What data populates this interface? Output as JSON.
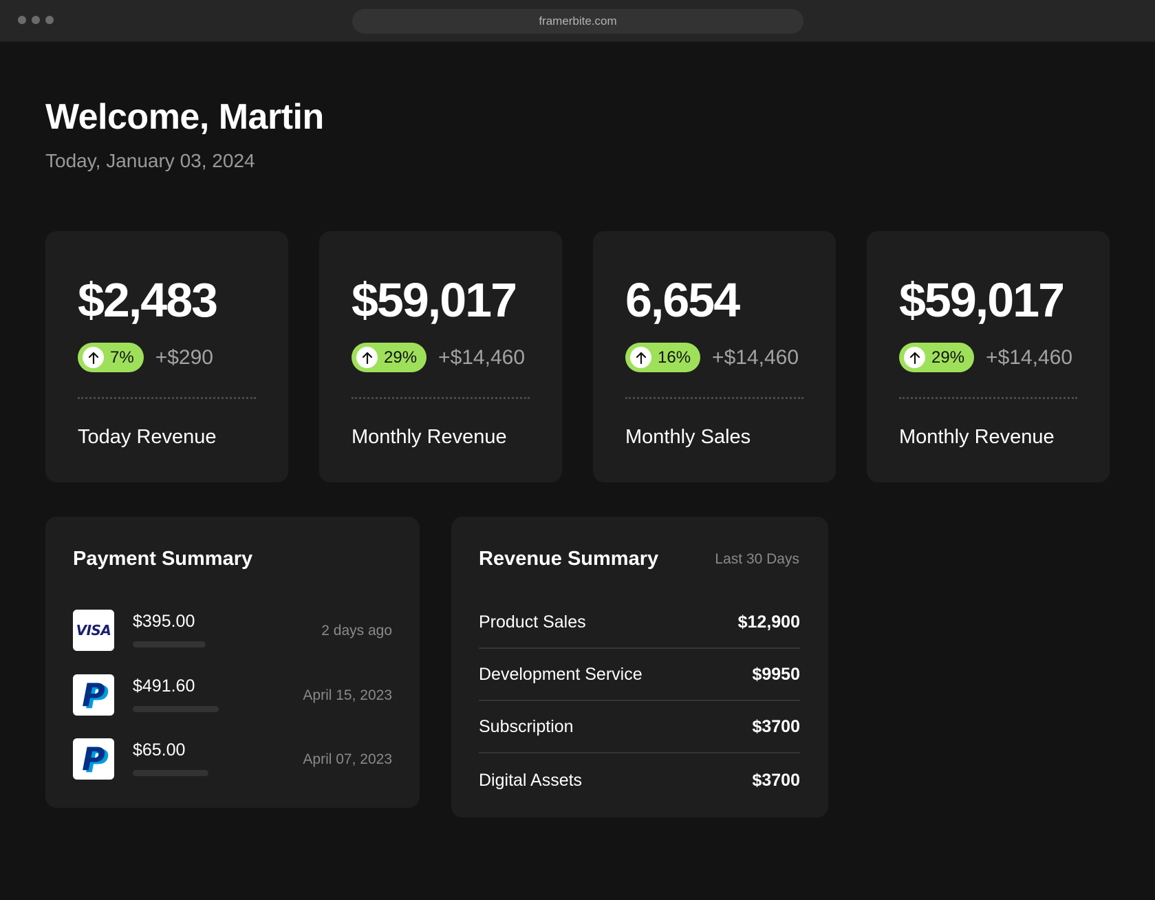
{
  "browser": {
    "url": "framerbite.com"
  },
  "header": {
    "title": "Welcome, Martin",
    "date": "Today, January 03, 2024"
  },
  "accent_color": "#9fe05a",
  "stats": [
    {
      "value": "$2,483",
      "percent": "7%",
      "delta": "+$290",
      "label": "Today Revenue"
    },
    {
      "value": "$59,017",
      "percent": "29%",
      "delta": "+$14,460",
      "label": "Monthly Revenue"
    },
    {
      "value": "6,654",
      "percent": "16%",
      "delta": "+$14,460",
      "label": "Monthly Sales"
    },
    {
      "value": "$59,017",
      "percent": "29%",
      "delta": "+$14,460",
      "label": "Monthly Revenue"
    }
  ],
  "payment_summary": {
    "title": "Payment Summary",
    "items": [
      {
        "method": "visa-logo",
        "logo_text": "VISA",
        "amount": "$395.00",
        "date": "2 days ago"
      },
      {
        "method": "paypal-logo",
        "logo_text": "P",
        "amount": "$491.60",
        "date": "April 15, 2023"
      },
      {
        "method": "paypal-logo",
        "logo_text": "P",
        "amount": "$65.00",
        "date": "April 07, 2023"
      }
    ]
  },
  "revenue_summary": {
    "title": "Revenue Summary",
    "range": "Last 30 Days",
    "items": [
      {
        "label": "Product Sales",
        "amount": "$12,900"
      },
      {
        "label": "Development Service",
        "amount": "$9950"
      },
      {
        "label": "Subscription",
        "amount": "$3700"
      },
      {
        "label": "Digital Assets",
        "amount": "$3700"
      }
    ]
  }
}
